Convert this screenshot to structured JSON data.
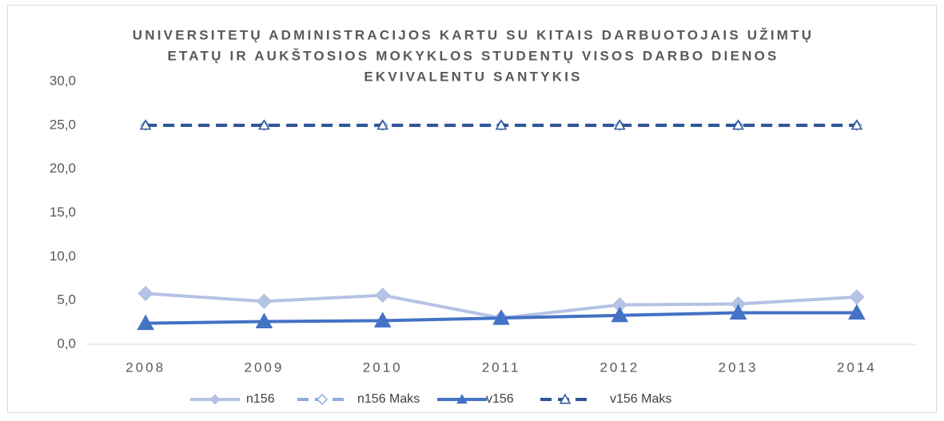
{
  "chart_data": {
    "type": "line",
    "title": [
      "UNIVERSITETŲ ADMINISTRACIJOS KARTU SU KITAIS DARBUOTOJAIS UŽIMTŲ",
      "ETATŲ IR AUKŠTOSIOS MOKYKLOS STUDENTŲ VISOS DARBO DIENOS",
      "EKVIVALENTU SANTYKIS"
    ],
    "categories": [
      "2008",
      "2009",
      "2010",
      "2011",
      "2012",
      "2013",
      "2014"
    ],
    "series": [
      {
        "name": "n156",
        "color": "#b4c2e4",
        "dash": false,
        "marker": "diamond",
        "filled": true,
        "values": [
          5.8,
          4.9,
          5.6,
          3.0,
          4.5,
          4.6,
          5.4
        ]
      },
      {
        "name": "n156 Maks",
        "color": "#8faadc",
        "dash": true,
        "marker": "diamond",
        "filled": false,
        "values": [
          25,
          25,
          25,
          25,
          25,
          25,
          25
        ]
      },
      {
        "name": "v156",
        "color": "#4472c4",
        "dash": false,
        "marker": "triangle",
        "filled": true,
        "values": [
          2.4,
          2.6,
          2.7,
          3.0,
          3.3,
          3.6,
          3.6
        ]
      },
      {
        "name": "v156 Maks",
        "color": "#2f5597",
        "dash": true,
        "marker": "triangle",
        "filled": false,
        "values": [
          25,
          25,
          25,
          25,
          25,
          25,
          25
        ]
      }
    ],
    "ylim": [
      0,
      30
    ],
    "yticks": [
      {
        "value": 0,
        "label": "0,0"
      },
      {
        "value": 5,
        "label": "5,0"
      },
      {
        "value": 10,
        "label": "10,0"
      },
      {
        "value": 15,
        "label": "15,0"
      },
      {
        "value": 20,
        "label": "20,0"
      },
      {
        "value": 25,
        "label": "25,0"
      },
      {
        "value": 30,
        "label": "30,0"
      }
    ],
    "grid": false,
    "legend": "bottom"
  }
}
